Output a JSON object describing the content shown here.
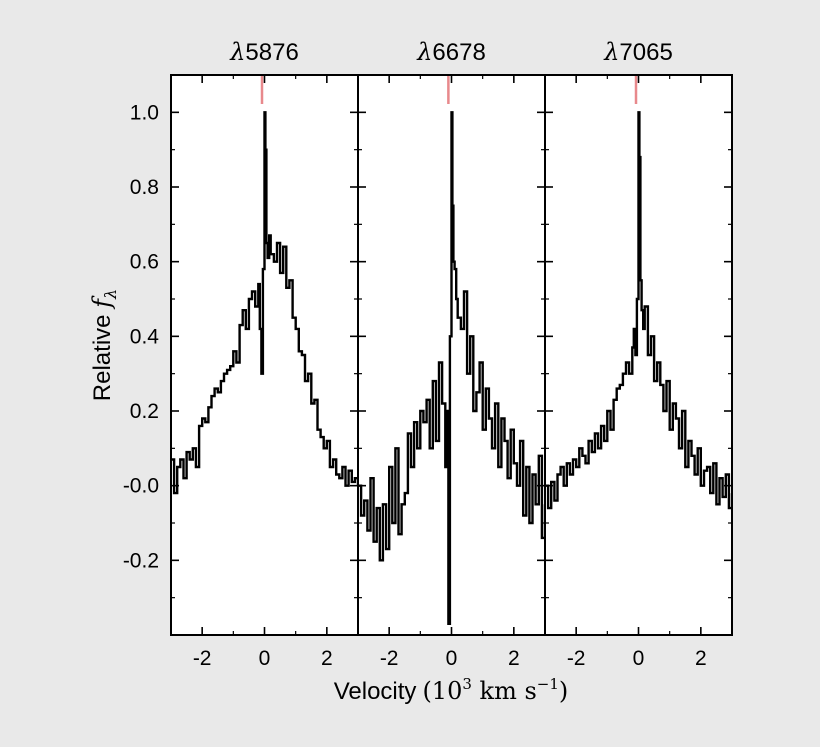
{
  "chart_data": {
    "type": "line",
    "layout": "three-panel",
    "xlabel": {
      "prefix": "Velocity",
      "unit": "(10",
      "unit_exp": "3",
      "unit_mid": " km s",
      "unit_exp2": "−1",
      "unit_end": ")"
    },
    "ylabel": {
      "prefix": "Relative ",
      "symbol": "f",
      "subscript": "λ"
    },
    "xlim": [
      -3.0,
      3.0
    ],
    "ylim": [
      -0.4,
      1.1
    ],
    "xticks": [
      -2,
      0,
      2
    ],
    "xtick_labels": [
      "-2",
      "0",
      "2"
    ],
    "yticks": [
      1.0,
      0.8,
      0.6,
      0.4,
      0.2,
      0.0,
      -0.2
    ],
    "ytick_labels": [
      "1.0",
      "0.8",
      "0.6",
      "0.4",
      "0.2",
      "-0.0",
      "-0.2"
    ],
    "marker_color": "#e8898c",
    "line_color": "#000000",
    "panels": [
      {
        "title_symbol": "λ",
        "title_number": "5876",
        "marker_x": -0.08,
        "x": [
          -3.0,
          -2.9,
          -2.8,
          -2.7,
          -2.6,
          -2.5,
          -2.4,
          -2.3,
          -2.2,
          -2.1,
          -2.0,
          -1.9,
          -1.8,
          -1.7,
          -1.6,
          -1.5,
          -1.4,
          -1.3,
          -1.2,
          -1.1,
          -1.0,
          -0.9,
          -0.8,
          -0.7,
          -0.6,
          -0.5,
          -0.4,
          -0.3,
          -0.2,
          -0.15,
          -0.1,
          -0.05,
          0.0,
          0.03,
          0.06,
          0.1,
          0.15,
          0.2,
          0.3,
          0.4,
          0.5,
          0.6,
          0.7,
          0.8,
          0.9,
          1.0,
          1.1,
          1.2,
          1.3,
          1.4,
          1.5,
          1.6,
          1.7,
          1.8,
          1.9,
          2.0,
          2.1,
          2.2,
          2.3,
          2.4,
          2.5,
          2.6,
          2.7,
          2.8,
          2.9,
          3.0
        ],
        "y": [
          0.07,
          -0.02,
          0.05,
          0.07,
          0.02,
          0.09,
          0.07,
          0.1,
          0.05,
          0.16,
          0.18,
          0.17,
          0.21,
          0.24,
          0.26,
          0.25,
          0.28,
          0.3,
          0.31,
          0.32,
          0.36,
          0.33,
          0.43,
          0.47,
          0.42,
          0.5,
          0.52,
          0.48,
          0.54,
          0.42,
          0.3,
          0.58,
          1.0,
          0.9,
          0.65,
          0.61,
          0.67,
          0.62,
          0.6,
          0.65,
          0.57,
          0.64,
          0.53,
          0.55,
          0.45,
          0.42,
          0.36,
          0.35,
          0.28,
          0.3,
          0.22,
          0.23,
          0.15,
          0.13,
          0.1,
          0.12,
          0.05,
          0.07,
          0.03,
          0.02,
          0.05,
          0.0,
          0.04,
          0.01,
          0.02,
          0.0
        ]
      },
      {
        "title_symbol": "λ",
        "title_number": "6678",
        "marker_x": -0.1,
        "x": [
          -3.0,
          -2.9,
          -2.8,
          -2.7,
          -2.6,
          -2.5,
          -2.4,
          -2.3,
          -2.2,
          -2.1,
          -2.0,
          -1.9,
          -1.8,
          -1.7,
          -1.6,
          -1.5,
          -1.4,
          -1.3,
          -1.2,
          -1.1,
          -1.0,
          -0.9,
          -0.8,
          -0.7,
          -0.6,
          -0.5,
          -0.4,
          -0.3,
          -0.2,
          -0.15,
          -0.1,
          -0.05,
          0.0,
          0.03,
          0.06,
          0.1,
          0.15,
          0.2,
          0.3,
          0.4,
          0.5,
          0.6,
          0.7,
          0.8,
          0.9,
          1.0,
          1.1,
          1.2,
          1.3,
          1.4,
          1.5,
          1.6,
          1.7,
          1.8,
          1.9,
          2.0,
          2.1,
          2.2,
          2.3,
          2.4,
          2.5,
          2.6,
          2.7,
          2.8,
          2.9,
          3.0
        ],
        "y": [
          0.0,
          -0.08,
          -0.04,
          -0.12,
          0.02,
          -0.15,
          -0.06,
          -0.2,
          -0.05,
          -0.17,
          0.05,
          -0.1,
          0.1,
          -0.13,
          -0.05,
          -0.02,
          0.14,
          0.05,
          0.17,
          0.1,
          0.2,
          0.17,
          0.23,
          0.1,
          0.28,
          0.12,
          0.33,
          0.22,
          0.05,
          0.2,
          -0.37,
          0.4,
          1.0,
          0.75,
          0.6,
          0.58,
          0.5,
          0.45,
          0.42,
          0.52,
          0.3,
          0.4,
          0.2,
          0.25,
          0.33,
          0.15,
          0.26,
          0.18,
          0.1,
          0.22,
          0.05,
          0.18,
          0.12,
          0.02,
          0.15,
          0.06,
          0.0,
          0.12,
          -0.08,
          0.05,
          -0.1,
          0.03,
          -0.05,
          0.08,
          -0.14,
          -0.05
        ]
      },
      {
        "title_symbol": "λ",
        "title_number": "7065",
        "marker_x": -0.08,
        "x": [
          -3.0,
          -2.9,
          -2.8,
          -2.7,
          -2.6,
          -2.5,
          -2.4,
          -2.3,
          -2.2,
          -2.1,
          -2.0,
          -1.9,
          -1.8,
          -1.7,
          -1.6,
          -1.5,
          -1.4,
          -1.3,
          -1.2,
          -1.1,
          -1.0,
          -0.9,
          -0.8,
          -0.7,
          -0.6,
          -0.5,
          -0.4,
          -0.3,
          -0.2,
          -0.15,
          -0.1,
          -0.05,
          0.0,
          0.03,
          0.06,
          0.1,
          0.15,
          0.2,
          0.3,
          0.4,
          0.5,
          0.6,
          0.7,
          0.8,
          0.9,
          1.0,
          1.1,
          1.2,
          1.3,
          1.4,
          1.5,
          1.6,
          1.7,
          1.8,
          1.9,
          2.0,
          2.1,
          2.2,
          2.3,
          2.4,
          2.5,
          2.6,
          2.7,
          2.8,
          2.9,
          3.0
        ],
        "y": [
          0.0,
          -0.06,
          0.01,
          -0.04,
          0.03,
          0.05,
          0.0,
          0.06,
          0.03,
          0.07,
          0.05,
          0.1,
          0.08,
          0.06,
          0.12,
          0.09,
          0.14,
          0.1,
          0.16,
          0.12,
          0.2,
          0.15,
          0.23,
          0.26,
          0.27,
          0.3,
          0.33,
          0.3,
          0.37,
          0.42,
          0.35,
          0.5,
          1.0,
          0.88,
          0.55,
          0.47,
          0.42,
          0.48,
          0.35,
          0.4,
          0.28,
          0.33,
          0.27,
          0.2,
          0.28,
          0.15,
          0.22,
          0.18,
          0.1,
          0.2,
          0.05,
          0.12,
          0.08,
          0.03,
          0.1,
          0.0,
          0.04,
          0.05,
          -0.02,
          0.06,
          -0.05,
          0.02,
          -0.03,
          0.03,
          -0.06,
          -0.02
        ]
      }
    ]
  }
}
